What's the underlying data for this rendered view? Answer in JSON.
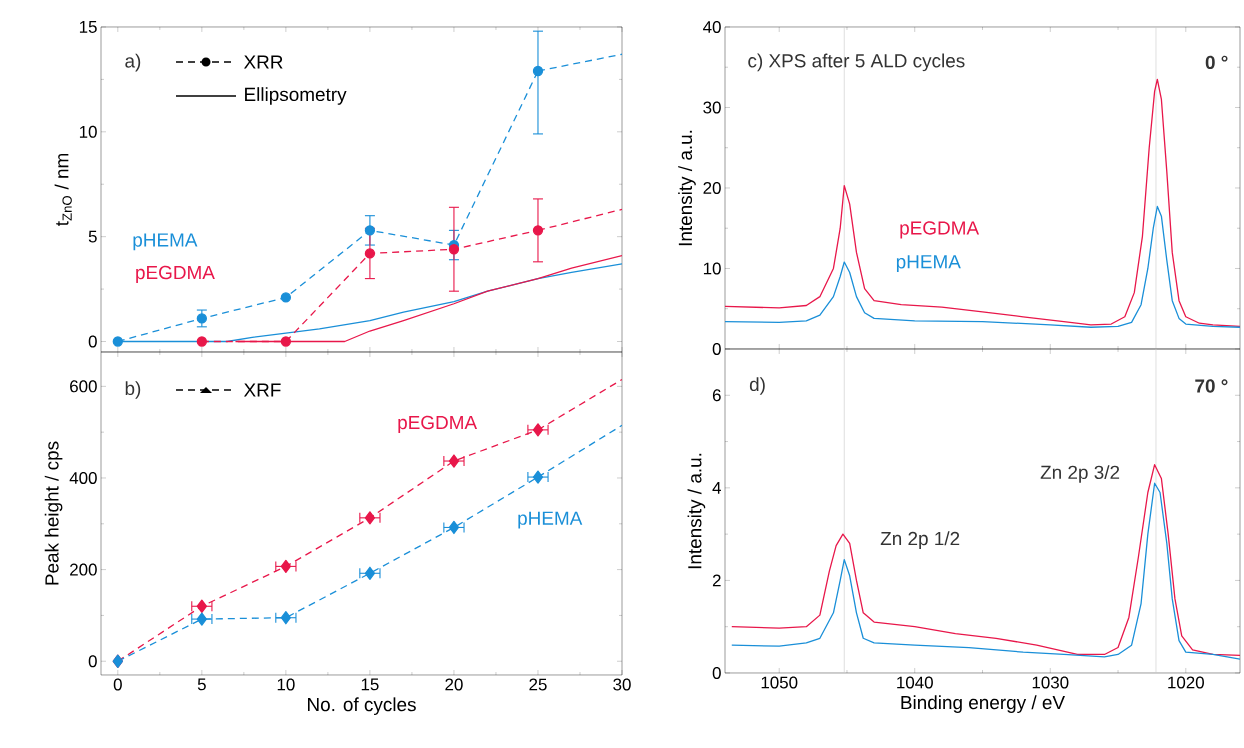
{
  "chart_data": [
    {
      "type": "line",
      "ylabel": "t$_{ZnO}$ / nm",
      "xlim": [
        -1,
        30
      ],
      "ylim": [
        -0.5,
        15
      ],
      "xticks": [
        0,
        5,
        10,
        15,
        20,
        25,
        30
      ],
      "yticks": [
        0,
        5,
        10,
        15
      ],
      "tick_labels": "y",
      "annotations": [
        "a)",
        "XRR",
        "Ellipsometry"
      ],
      "series": [
        {
          "color": "#1a8fd8",
          "line_style": "solid",
          "marker": "none",
          "x": [
            0,
            6.5,
            8,
            10,
            12,
            15,
            17,
            20,
            22,
            25,
            27,
            30
          ],
          "values": [
            0,
            0,
            0.2,
            0.4,
            0.6,
            1.0,
            1.4,
            1.9,
            2.4,
            3.0,
            3.3,
            3.7
          ]
        },
        {
          "color": "#e8174a",
          "line_style": "solid",
          "marker": "none",
          "x": [
            7,
            13.5,
            15,
            17,
            20,
            22,
            25,
            27,
            30
          ],
          "values": [
            0,
            0,
            0.5,
            1.0,
            1.8,
            2.4,
            3.0,
            3.5,
            4.1
          ]
        },
        {
          "name": "pHEMA",
          "color": "#1a8fd8",
          "line_style": "dashed",
          "marker": "circle",
          "x": [
            0,
            5,
            10,
            15,
            20,
            25
          ],
          "values": [
            0,
            1.1,
            2.1,
            5.3,
            4.6,
            12.9
          ],
          "errors": [
            null,
            0.4,
            null,
            0.7,
            0.7,
            [
              9.9,
              14.8
            ]
          ]
        },
        {
          "color": "#1a8fd8",
          "line_style": "dashed",
          "marker": "none",
          "x": [
            25,
            30
          ],
          "values": [
            12.9,
            13.7
          ]
        },
        {
          "name": "pEGDMA",
          "color": "#e8174a",
          "line_style": "dashed",
          "marker": "circle",
          "x": [
            5,
            10,
            15,
            20,
            25
          ],
          "values": [
            0,
            0,
            4.2,
            4.4,
            5.3
          ],
          "errors": [
            null,
            null,
            1.2,
            2.0,
            1.5
          ]
        },
        {
          "color": "#e8174a",
          "line_style": "dashed",
          "marker": "none",
          "x": [
            25,
            30
          ],
          "values": [
            5.3,
            6.3
          ]
        }
      ]
    },
    {
      "type": "line",
      "xlabel": "No. of cycles",
      "ylabel": "Peak height / cps",
      "xlim": [
        -1,
        30
      ],
      "ylim": [
        -30,
        675
      ],
      "xticks": [
        0,
        5,
        10,
        15,
        20,
        25,
        30
      ],
      "yticks": [
        0,
        200,
        400,
        600
      ],
      "annotations": [
        "b)",
        "XRF"
      ],
      "series": [
        {
          "name": "pEGDMA",
          "color": "#e8174a",
          "line_style": "dashed",
          "marker": "diamond",
          "x": [
            0,
            5,
            10,
            15,
            20,
            25
          ],
          "values": [
            0,
            120,
            207,
            313,
            437,
            505
          ],
          "xerrors": [
            null,
            0.6,
            0.6,
            0.6,
            0.6,
            0.6
          ]
        },
        {
          "color": "#e8174a",
          "line_style": "dashed",
          "marker": "none",
          "x": [
            25,
            30
          ],
          "values": [
            505,
            615
          ]
        },
        {
          "name": "pHEMA",
          "color": "#1a8fd8",
          "line_style": "dashed",
          "marker": "diamond",
          "x": [
            0,
            5,
            10,
            15,
            20,
            25
          ],
          "values": [
            0,
            92,
            95,
            192,
            292,
            402
          ],
          "xerrors": [
            null,
            0.6,
            0.6,
            0.6,
            0.6,
            0.6
          ]
        },
        {
          "color": "#1a8fd8",
          "line_style": "dashed",
          "marker": "none",
          "x": [
            25,
            30
          ],
          "values": [
            402,
            515
          ]
        }
      ]
    },
    {
      "type": "line",
      "ylabel": "Intensity / a.u.",
      "xlim": [
        1054,
        1016
      ],
      "ylim": [
        0,
        40
      ],
      "xticks": [
        1050,
        1040,
        1030,
        1020
      ],
      "yticks": [
        0,
        10,
        20,
        30,
        40
      ],
      "tick_labels": "y",
      "annotations": [
        "c)  XPS after 5 ALD cycles",
        "0 °"
      ],
      "ref_lines": [
        {
          "axis": "x",
          "value": 1045.2,
          "color": "#c8c8c8"
        },
        {
          "axis": "x",
          "value": 1022.2,
          "color": "#c8c8c8"
        }
      ],
      "series": [
        {
          "name": "pEGDMA",
          "color": "#e8174a",
          "line_style": "solid",
          "marker": "none",
          "x": [
            1054,
            1050,
            1048,
            1047,
            1046,
            1045.5,
            1045.2,
            1044.8,
            1044.3,
            1043.7,
            1043,
            1041,
            1038,
            1035,
            1032,
            1029,
            1027,
            1025.5,
            1024.5,
            1023.8,
            1023.2,
            1022.7,
            1022.3,
            1022.1,
            1021.8,
            1021.4,
            1021,
            1020.5,
            1020,
            1019,
            1018,
            1016
          ],
          "values": [
            5.3,
            5.1,
            5.4,
            6.5,
            10,
            15,
            20.3,
            18,
            12,
            7.5,
            6.0,
            5.5,
            5.2,
            4.6,
            4.0,
            3.4,
            3.0,
            3.1,
            4,
            7,
            14,
            25,
            32,
            33.5,
            31,
            22,
            12,
            6,
            4,
            3.2,
            3.0,
            2.8
          ]
        },
        {
          "name": "pHEMA",
          "color": "#1a8fd8",
          "line_style": "solid",
          "marker": "none",
          "x": [
            1054,
            1050,
            1048,
            1047,
            1046,
            1045.5,
            1045.2,
            1044.8,
            1044.3,
            1043.7,
            1043,
            1040,
            1035,
            1030,
            1027,
            1025,
            1024,
            1023.3,
            1022.8,
            1022.4,
            1022.1,
            1021.8,
            1021.4,
            1021,
            1020.5,
            1020,
            1018,
            1016
          ],
          "values": [
            3.4,
            3.3,
            3.5,
            4.2,
            6.5,
            9,
            10.8,
            9.5,
            6.5,
            4.5,
            3.8,
            3.5,
            3.4,
            3.0,
            2.7,
            2.8,
            3.3,
            5.5,
            10,
            15,
            17.7,
            16.5,
            11,
            6,
            3.8,
            3.1,
            2.8,
            2.7
          ]
        }
      ]
    },
    {
      "type": "line",
      "xlabel": "Binding energy / eV",
      "ylabel": "Intensity / a.u.",
      "xlim": [
        1054,
        1016
      ],
      "ylim": [
        0,
        7
      ],
      "xticks": [
        1050,
        1040,
        1030,
        1020
      ],
      "yticks": [
        0,
        2,
        4,
        6
      ],
      "annotations": [
        "d)",
        "70 °",
        "Zn 2p 1/2",
        "Zn 2p 3/2"
      ],
      "ref_lines": [
        {
          "axis": "x",
          "value": 1045.2,
          "color": "#c8c8c8"
        },
        {
          "axis": "x",
          "value": 1022.2,
          "color": "#c8c8c8"
        }
      ],
      "series": [
        {
          "color": "#e8174a",
          "line_style": "solid",
          "marker": "none",
          "x": [
            1053.5,
            1050,
            1048,
            1047,
            1046.3,
            1045.8,
            1045.3,
            1044.8,
            1044.3,
            1043.8,
            1043,
            1040,
            1037,
            1034,
            1031,
            1028,
            1026,
            1025,
            1024.2,
            1023.5,
            1022.8,
            1022.3,
            1021.8,
            1021.3,
            1020.8,
            1020.3,
            1019.5,
            1018,
            1016
          ],
          "values": [
            1.0,
            0.97,
            1.0,
            1.25,
            2.2,
            2.75,
            3.0,
            2.8,
            2.0,
            1.3,
            1.1,
            1.0,
            0.85,
            0.75,
            0.6,
            0.4,
            0.4,
            0.55,
            1.2,
            2.5,
            3.9,
            4.5,
            4.2,
            3.0,
            1.6,
            0.8,
            0.5,
            0.4,
            0.38
          ]
        },
        {
          "color": "#1a8fd8",
          "line_style": "solid",
          "marker": "none",
          "x": [
            1053.5,
            1050,
            1048,
            1047,
            1046,
            1045.5,
            1045.2,
            1044.8,
            1044.3,
            1043.8,
            1043,
            1040,
            1036,
            1032,
            1029,
            1026,
            1025,
            1024,
            1023.3,
            1022.8,
            1022.3,
            1021.9,
            1021.4,
            1021,
            1020.5,
            1020,
            1018,
            1016
          ],
          "values": [
            0.6,
            0.58,
            0.65,
            0.75,
            1.3,
            2.0,
            2.45,
            2.1,
            1.3,
            0.75,
            0.65,
            0.6,
            0.55,
            0.45,
            0.4,
            0.35,
            0.4,
            0.6,
            1.5,
            3.0,
            4.1,
            3.9,
            2.8,
            1.6,
            0.7,
            0.45,
            0.4,
            0.3
          ]
        }
      ]
    }
  ]
}
